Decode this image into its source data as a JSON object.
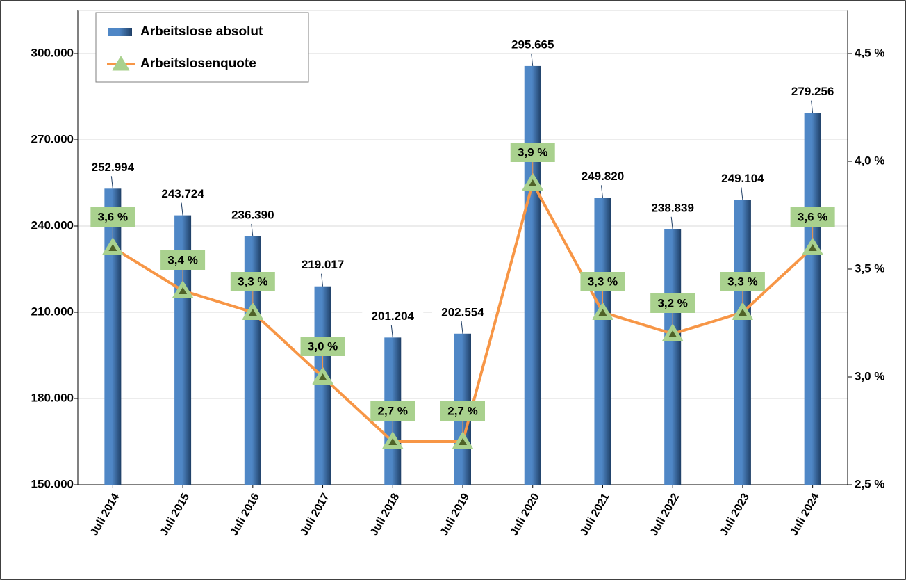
{
  "chart_data": {
    "type": "bar",
    "categories": [
      "Juli 2014",
      "Juli 2015",
      "Juli 2016",
      "Juli 2017",
      "Juli 2018",
      "Juli 2019",
      "Juli 2020",
      "Juli 2021",
      "Juli 2022",
      "Juli 2023",
      "Juli 2024"
    ],
    "series": [
      {
        "name": "Arbeitslose absolut",
        "type": "bar",
        "color": "#4f87c6",
        "values": [
          252994,
          243724,
          236390,
          219017,
          201204,
          202554,
          295665,
          249820,
          238839,
          249104,
          279256
        ],
        "value_labels": [
          "252.994",
          "243.724",
          "236.390",
          "219.017",
          "201.204",
          "202.554",
          "295.665",
          "249.820",
          "238.839",
          "249.104",
          "279.256"
        ]
      },
      {
        "name": "Arbeitslosenquote",
        "type": "line",
        "axis": "y2",
        "color": "#f79646",
        "marker_color": "#a9d18e",
        "values": [
          3.6,
          3.4,
          3.3,
          3.0,
          2.7,
          2.7,
          3.9,
          3.3,
          3.2,
          3.3,
          3.6
        ],
        "value_labels": [
          "3,6 %",
          "3,4 %",
          "3,3 %",
          "3,0 %",
          "2,7 %",
          "2,7 %",
          "3,9 %",
          "3,3 %",
          "3,2 %",
          "3,3 %",
          "3,6 %"
        ]
      }
    ],
    "ylim": [
      150000,
      315000
    ],
    "yticks": [
      {
        "value": 150000,
        "label": "150.000"
      },
      {
        "value": 180000,
        "label": "180.000"
      },
      {
        "value": 210000,
        "label": "210.000"
      },
      {
        "value": 240000,
        "label": "240.000"
      },
      {
        "value": 270000,
        "label": "270.000"
      },
      {
        "value": 300000,
        "label": "300.000"
      }
    ],
    "y2lim": [
      2.5,
      4.7
    ],
    "y2ticks": [
      {
        "value": 2.5,
        "label": "2,5 %"
      },
      {
        "value": 3.0,
        "label": "3,0 %"
      },
      {
        "value": 3.5,
        "label": "3,5 %"
      },
      {
        "value": 4.0,
        "label": "4,0 %"
      },
      {
        "value": 4.5,
        "label": "4,5 %"
      }
    ],
    "grid": true,
    "legend": "top-left"
  }
}
